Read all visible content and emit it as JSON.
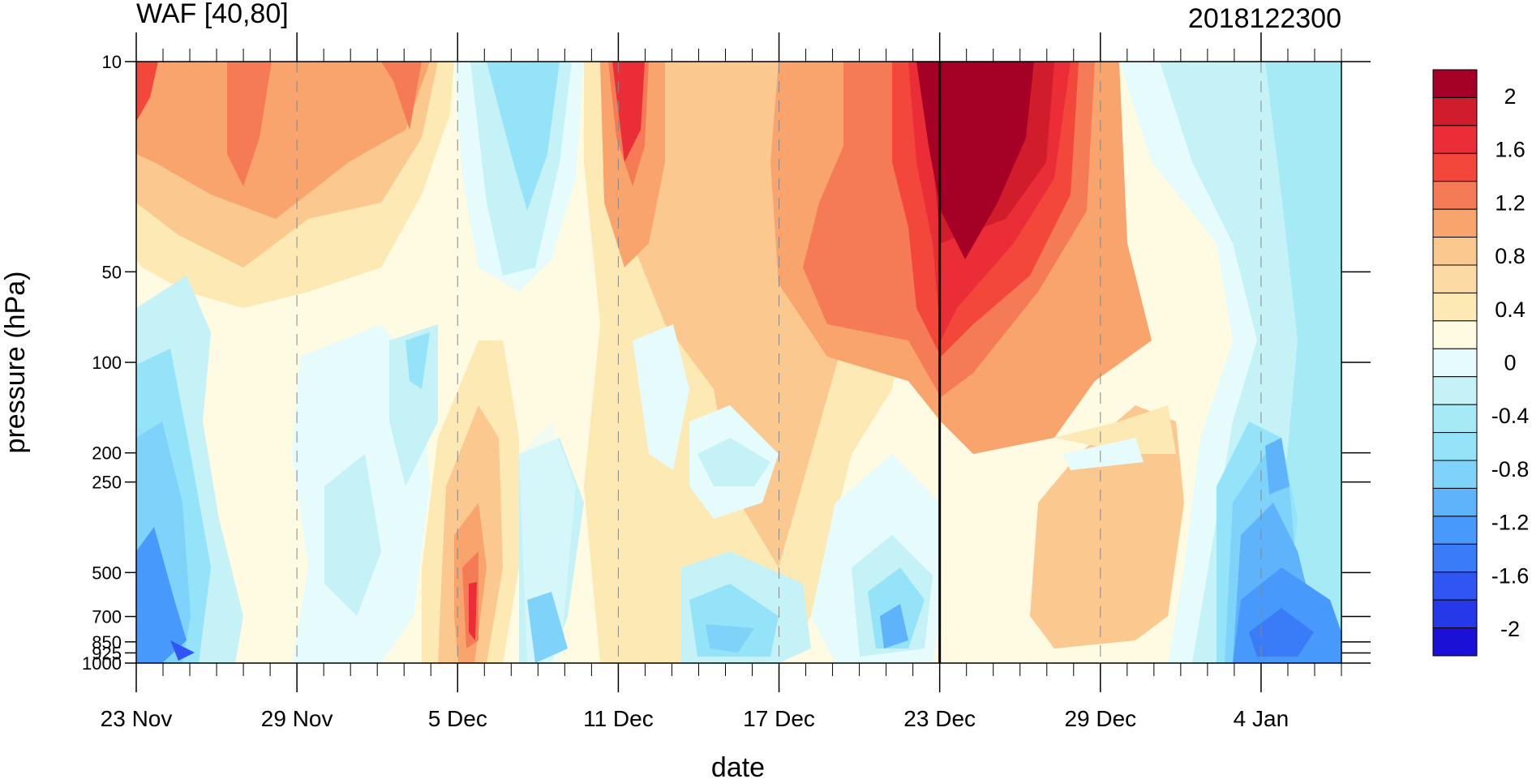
{
  "chart_data": {
    "type": "heatmap",
    "title_left": "WAF [40,80]",
    "title_right": "2018122300",
    "xlabel": "date",
    "ylabel": "pressure (hPa)",
    "x_tick_labels": [
      "23 Nov",
      "29 Nov",
      "5 Dec",
      "11 Dec",
      "17 Dec",
      "23 Dec",
      "29 Dec",
      "4 Jan"
    ],
    "x_tick_days": [
      0,
      6,
      12,
      18,
      24,
      30,
      36,
      42
    ],
    "x_range_days": [
      0,
      45
    ],
    "y_axis_scale": "log",
    "y_tick_labels": [
      "10",
      "50",
      "100",
      "200",
      "250",
      "500",
      "700",
      "850",
      "925",
      "1000"
    ],
    "y_tick_values": [
      10,
      50,
      100,
      200,
      250,
      500,
      700,
      850,
      925,
      1000
    ],
    "y_range": [
      1000,
      10
    ],
    "analysis_date_marker": "23 Dec",
    "colorbar": {
      "levels": [
        -2.2,
        -2.0,
        -1.8,
        -1.6,
        -1.4,
        -1.2,
        -1.0,
        -0.8,
        -0.6,
        -0.4,
        -0.2,
        0,
        0.2,
        0.4,
        0.6,
        0.8,
        1.0,
        1.2,
        1.4,
        1.6,
        1.8,
        2.0,
        2.2
      ],
      "labels": [
        "2",
        "1.6",
        "1.2",
        "0.8",
        "0.4",
        "0",
        "-0.4",
        "-0.8",
        "-1.2",
        "-1.6",
        "-2"
      ],
      "label_values": [
        2.0,
        1.6,
        1.2,
        0.8,
        0.4,
        0,
        -0.4,
        -0.8,
        -1.2,
        -1.6,
        -2.0
      ],
      "colors_top_to_bottom": [
        "#a50026",
        "#d01c2b",
        "#ea2d36",
        "#f3473c",
        "#f57b57",
        "#f9a46d",
        "#fbc88f",
        "#fbdba3",
        "#fde9b3",
        "#fffbe3",
        "#e6fbfc",
        "#c4f2f6",
        "#a6eaf5",
        "#94e3f8",
        "#7fd3fb",
        "#5fb3fb",
        "#4799fb",
        "#3a7bf8",
        "#2f56f2",
        "#2539e8",
        "#1a10d6"
      ]
    },
    "grid": "dashed vertical lines at date ticks"
  }
}
